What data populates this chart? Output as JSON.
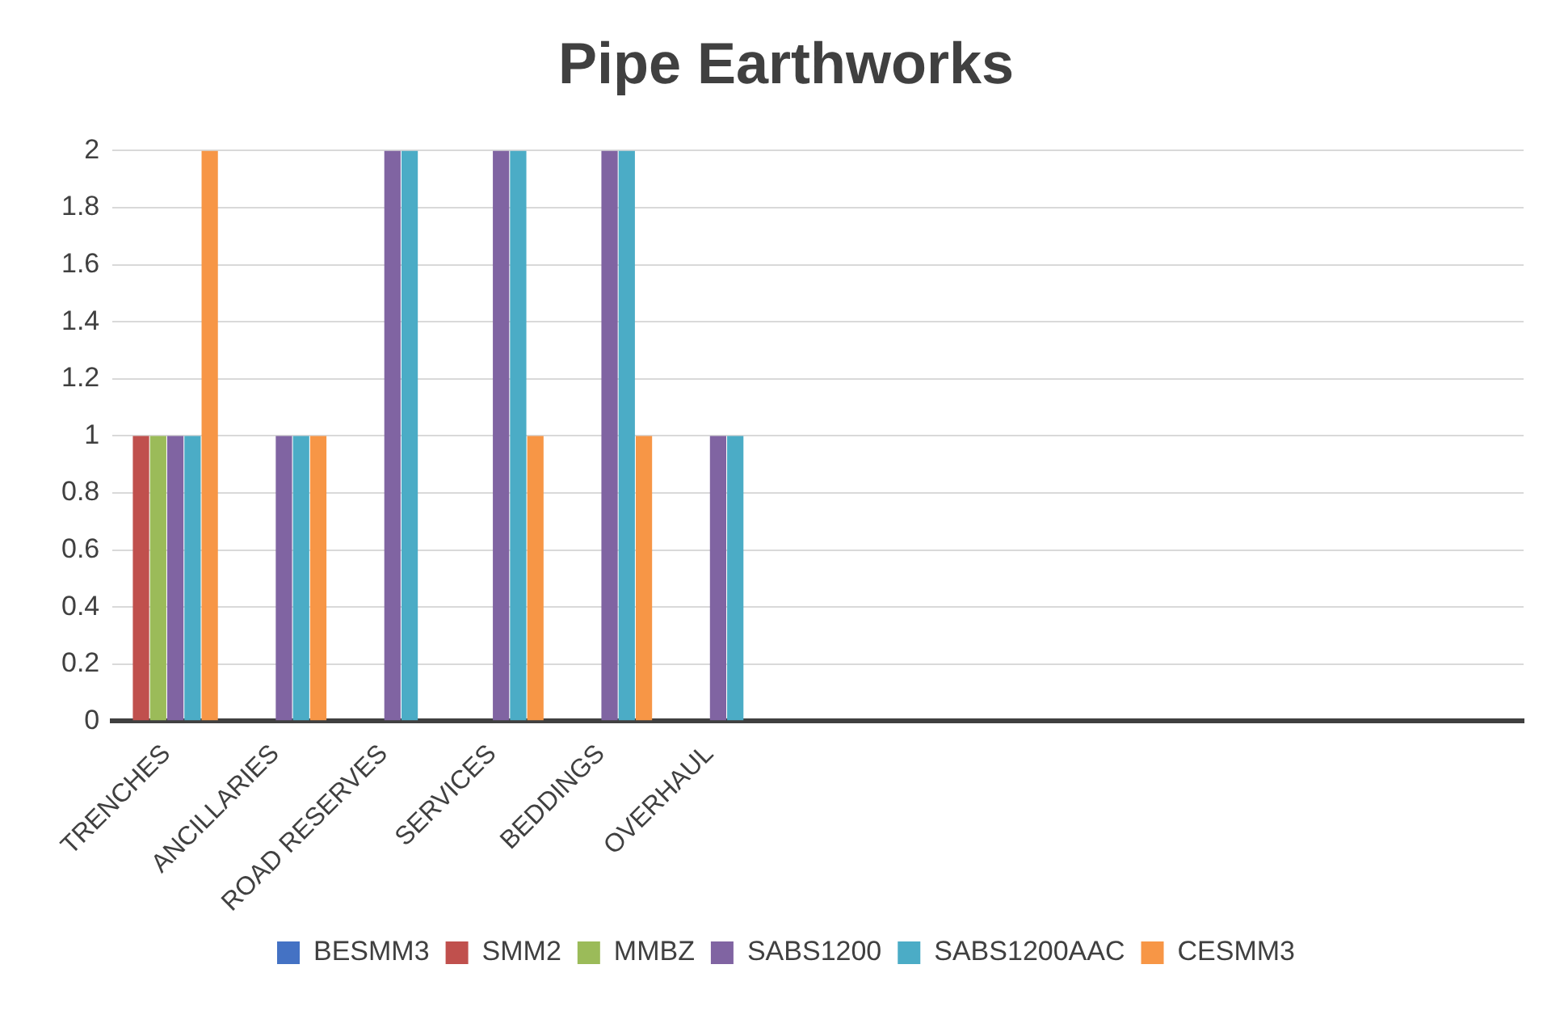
{
  "chart_data": {
    "type": "bar",
    "title": "Pipe Earthworks",
    "categories": [
      "TRENCHES",
      "ANCILLARIES",
      "ROAD RESERVES",
      "SERVICES",
      "BEDDINGS",
      "OVERHAUL",
      null,
      null,
      null,
      null,
      null,
      null,
      null
    ],
    "series": [
      {
        "name": "BESMM3",
        "color": "#4472c4",
        "values": [
          null,
          null,
          null,
          null,
          null,
          null,
          null,
          null,
          null,
          null,
          null,
          null,
          null
        ]
      },
      {
        "name": "SMM2",
        "color": "#c0504d",
        "values": [
          1,
          null,
          null,
          null,
          null,
          null,
          null,
          null,
          null,
          null,
          null,
          null,
          null
        ]
      },
      {
        "name": "MMBZ",
        "color": "#9bbb59",
        "values": [
          1,
          null,
          null,
          null,
          null,
          null,
          null,
          null,
          null,
          null,
          null,
          null,
          null
        ]
      },
      {
        "name": "SABS1200",
        "color": "#8064a2",
        "values": [
          1,
          1,
          2,
          2,
          2,
          1,
          null,
          null,
          null,
          null,
          null,
          null,
          null
        ]
      },
      {
        "name": "SABS1200AAC",
        "color": "#4bacc6",
        "values": [
          1,
          1,
          2,
          2,
          2,
          1,
          null,
          null,
          null,
          null,
          null,
          null,
          null
        ]
      },
      {
        "name": "CESMM3",
        "color": "#f79646",
        "values": [
          2,
          1,
          null,
          1,
          1,
          null,
          null,
          null,
          null,
          null,
          null,
          null,
          null
        ]
      }
    ],
    "ylim": [
      0,
      2
    ],
    "yticks": [
      0,
      0.2,
      0.4,
      0.6,
      0.8,
      1,
      1.2,
      1.4,
      1.6,
      1.8,
      2
    ],
    "grid": "y",
    "legend": "bottom"
  }
}
